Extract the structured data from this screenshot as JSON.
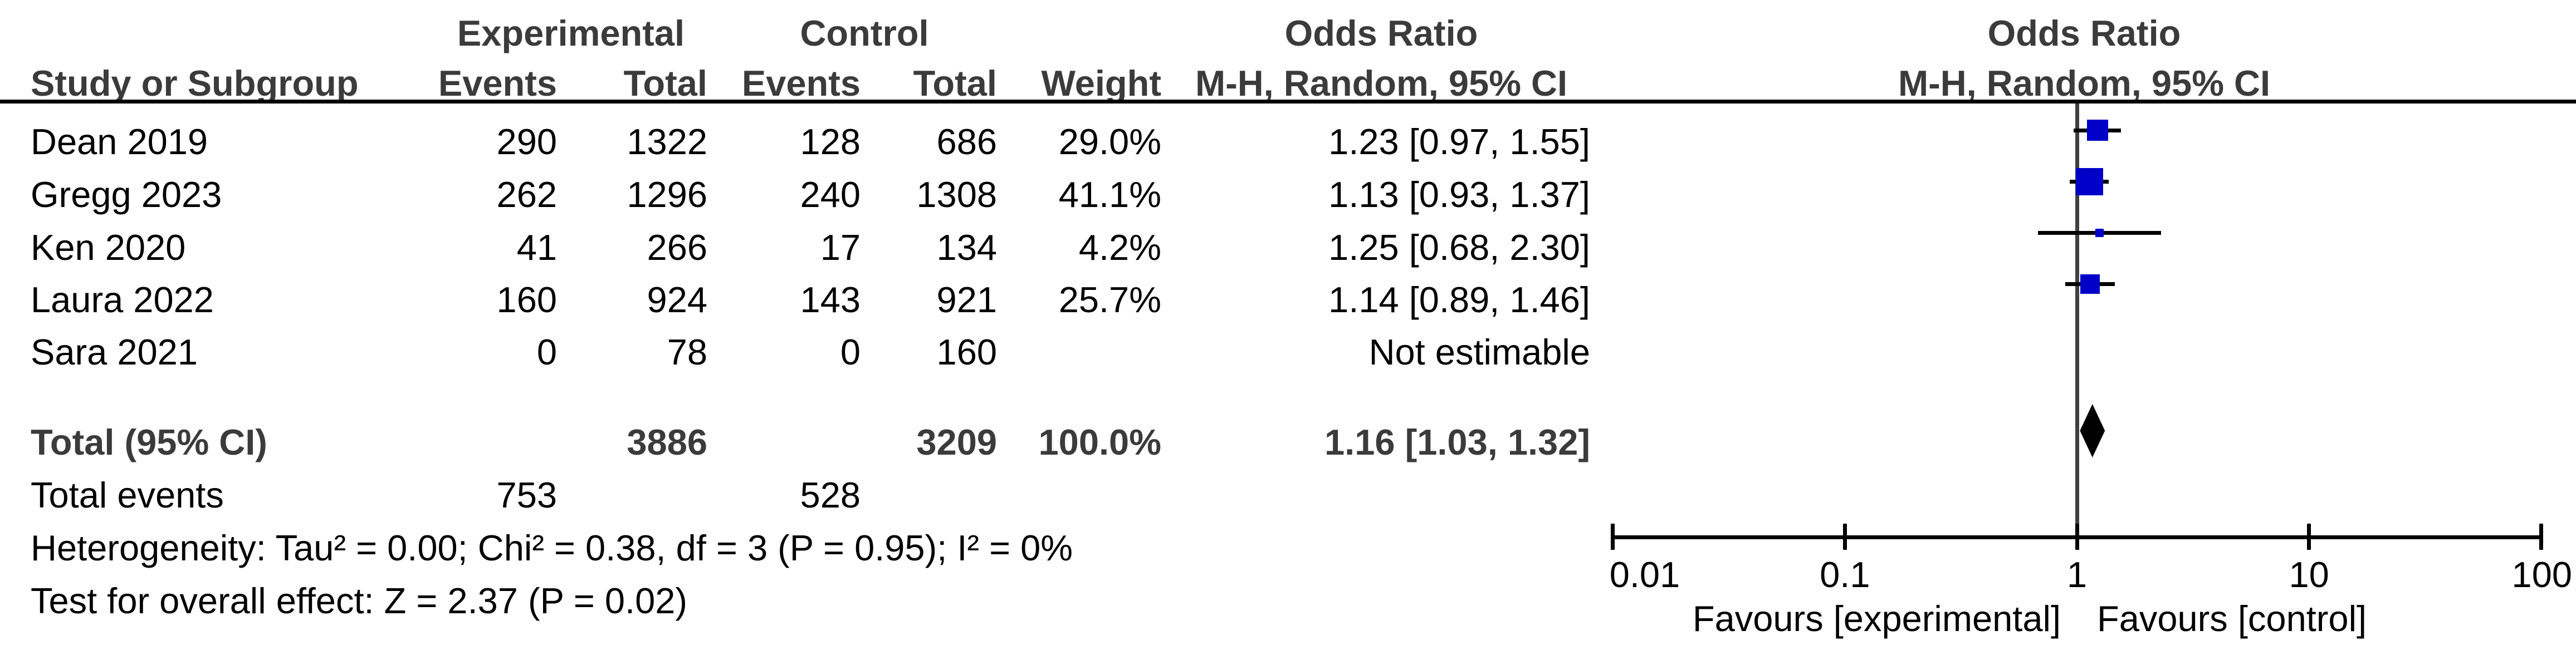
{
  "header": {
    "group_experimental": "Experimental",
    "group_control": "Control",
    "odds_ratio_left": "Odds Ratio",
    "odds_ratio_right": "Odds Ratio",
    "study_or_subgroup": "Study or Subgroup",
    "events_exp": "Events",
    "total_exp": "Total",
    "events_ctrl": "Events",
    "total_ctrl": "Total",
    "weight": "Weight",
    "mh_random_left": "M-H, Random, 95% CI",
    "mh_random_right": "M-H, Random, 95% CI"
  },
  "rows": [
    {
      "study": "Dean 2019",
      "exp_events": "290",
      "exp_total": "1322",
      "ctrl_events": "128",
      "ctrl_total": "686",
      "weight": "29.0%",
      "or_ci": "1.23 [0.97, 1.55]"
    },
    {
      "study": "Gregg 2023",
      "exp_events": "262",
      "exp_total": "1296",
      "ctrl_events": "240",
      "ctrl_total": "1308",
      "weight": "41.1%",
      "or_ci": "1.13 [0.93, 1.37]"
    },
    {
      "study": "Ken 2020",
      "exp_events": "41",
      "exp_total": "266",
      "ctrl_events": "17",
      "ctrl_total": "134",
      "weight": "4.2%",
      "or_ci": "1.25 [0.68, 2.30]"
    },
    {
      "study": "Laura 2022",
      "exp_events": "160",
      "exp_total": "924",
      "ctrl_events": "143",
      "ctrl_total": "921",
      "weight": "25.7%",
      "or_ci": "1.14 [0.89, 1.46]"
    },
    {
      "study": "Sara 2021",
      "exp_events": "0",
      "exp_total": "78",
      "ctrl_events": "0",
      "ctrl_total": "160",
      "weight": "",
      "or_ci": "Not estimable"
    }
  ],
  "total_row": {
    "label": "Total (95% CI)",
    "exp_total": "3886",
    "ctrl_total": "3209",
    "weight": "100.0%",
    "or_ci": "1.16 [1.03, 1.32]"
  },
  "total_events": {
    "label": "Total events",
    "exp": "753",
    "ctrl": "528"
  },
  "heterogeneity": "Heterogeneity: Tau² = 0.00; Chi² = 0.38, df = 3 (P = 0.95); I² = 0%",
  "overall_effect": "Test for overall effect: Z = 2.37 (P = 0.02)",
  "chart_data": {
    "type": "forest",
    "effect_measure": "Odds Ratio, M-H, Random, 95% CI",
    "scale": "log10",
    "axis": {
      "xlim": [
        0.01,
        100
      ],
      "ticks": [
        0.01,
        0.1,
        1,
        10,
        100
      ],
      "tick_labels": [
        "0.01",
        "0.1",
        "1",
        "10",
        "100"
      ],
      "reference_line": 1
    },
    "studies": [
      {
        "name": "Dean 2019",
        "or": 1.23,
        "ci_low": 0.97,
        "ci_high": 1.55,
        "weight_pct": 29.0
      },
      {
        "name": "Gregg 2023",
        "or": 1.13,
        "ci_low": 0.93,
        "ci_high": 1.37,
        "weight_pct": 41.1
      },
      {
        "name": "Ken 2020",
        "or": 1.25,
        "ci_low": 0.68,
        "ci_high": 2.3,
        "weight_pct": 4.2
      },
      {
        "name": "Laura 2022",
        "or": 1.14,
        "ci_low": 0.89,
        "ci_high": 1.46,
        "weight_pct": 25.7
      },
      {
        "name": "Sara 2021",
        "or": null,
        "ci_low": null,
        "ci_high": null,
        "weight_pct": null,
        "note": "Not estimable"
      }
    ],
    "total": {
      "label": "Total (95% CI)",
      "or": 1.16,
      "ci_low": 1.03,
      "ci_high": 1.32,
      "weight_pct": 100.0
    },
    "footer_left": "Favours [experimental]",
    "footer_right": "Favours [control]",
    "colors": {
      "marker_square": "#0000C8",
      "diamond": "#000000",
      "reference_line": "#404040",
      "axis": "#000000",
      "bold_text": "#3b3b3b",
      "text": "#000000"
    }
  }
}
